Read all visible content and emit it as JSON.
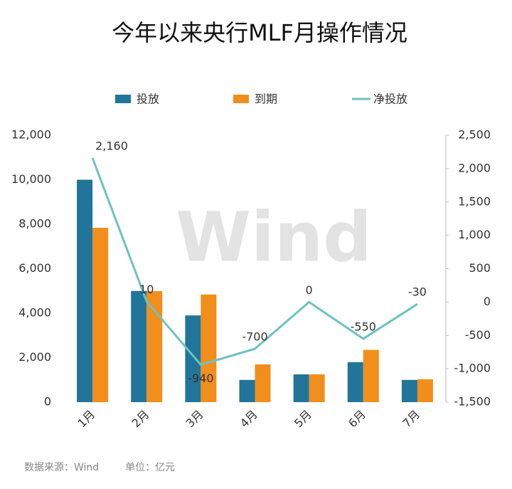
{
  "chart_data": {
    "type": "bar-line",
    "title": "今年以来央行MLF月操作情况",
    "watermark": "Wind",
    "source": "数据来源：Wind",
    "unit": "单位：亿元",
    "categories": [
      "1月",
      "2月",
      "3月",
      "4月",
      "5月",
      "6月",
      "7月"
    ],
    "series": [
      {
        "name": "投放",
        "type": "bar",
        "color": "#21759b",
        "values": [
          10000,
          5000,
          3900,
          1000,
          1250,
          1800,
          1000
        ]
      },
      {
        "name": "到期",
        "type": "bar",
        "color": "#f28e1c",
        "values": [
          7840,
          4990,
          4840,
          1700,
          1250,
          2350,
          1030
        ]
      },
      {
        "name": "净投放",
        "type": "line",
        "axis": "y2",
        "color": "#6cc3c1",
        "values": [
          2160,
          10,
          -940,
          -700,
          0,
          -550,
          -30
        ],
        "value_labels": [
          "2,160",
          "10",
          "-940",
          "-700",
          "0",
          "-550",
          "-30"
        ]
      }
    ],
    "ylim": [
      0,
      12000
    ],
    "yticks": [
      0,
      {
        "value": 2000,
        "label": "2,000"
      },
      {
        "value": 4000,
        "label": "4,000"
      },
      {
        "value": 6000,
        "label": "6,000"
      },
      {
        "value": 8000,
        "label": "8,000"
      },
      {
        "value": 10000,
        "label": "10,000"
      },
      {
        "value": 12000,
        "label": "12,000"
      }
    ],
    "y2lim": [
      -1500,
      2500
    ],
    "y2ticks": [
      {
        "value": -1500,
        "label": "-1,500"
      },
      {
        "value": -1000,
        "label": "-1,000"
      },
      -500,
      0,
      500,
      {
        "value": 1000,
        "label": "1,000"
      },
      {
        "value": 1500,
        "label": "1,500"
      },
      {
        "value": 2000,
        "label": "2,000"
      },
      {
        "value": 2500,
        "label": "2,500"
      }
    ],
    "legend": "top",
    "grid": false
  }
}
